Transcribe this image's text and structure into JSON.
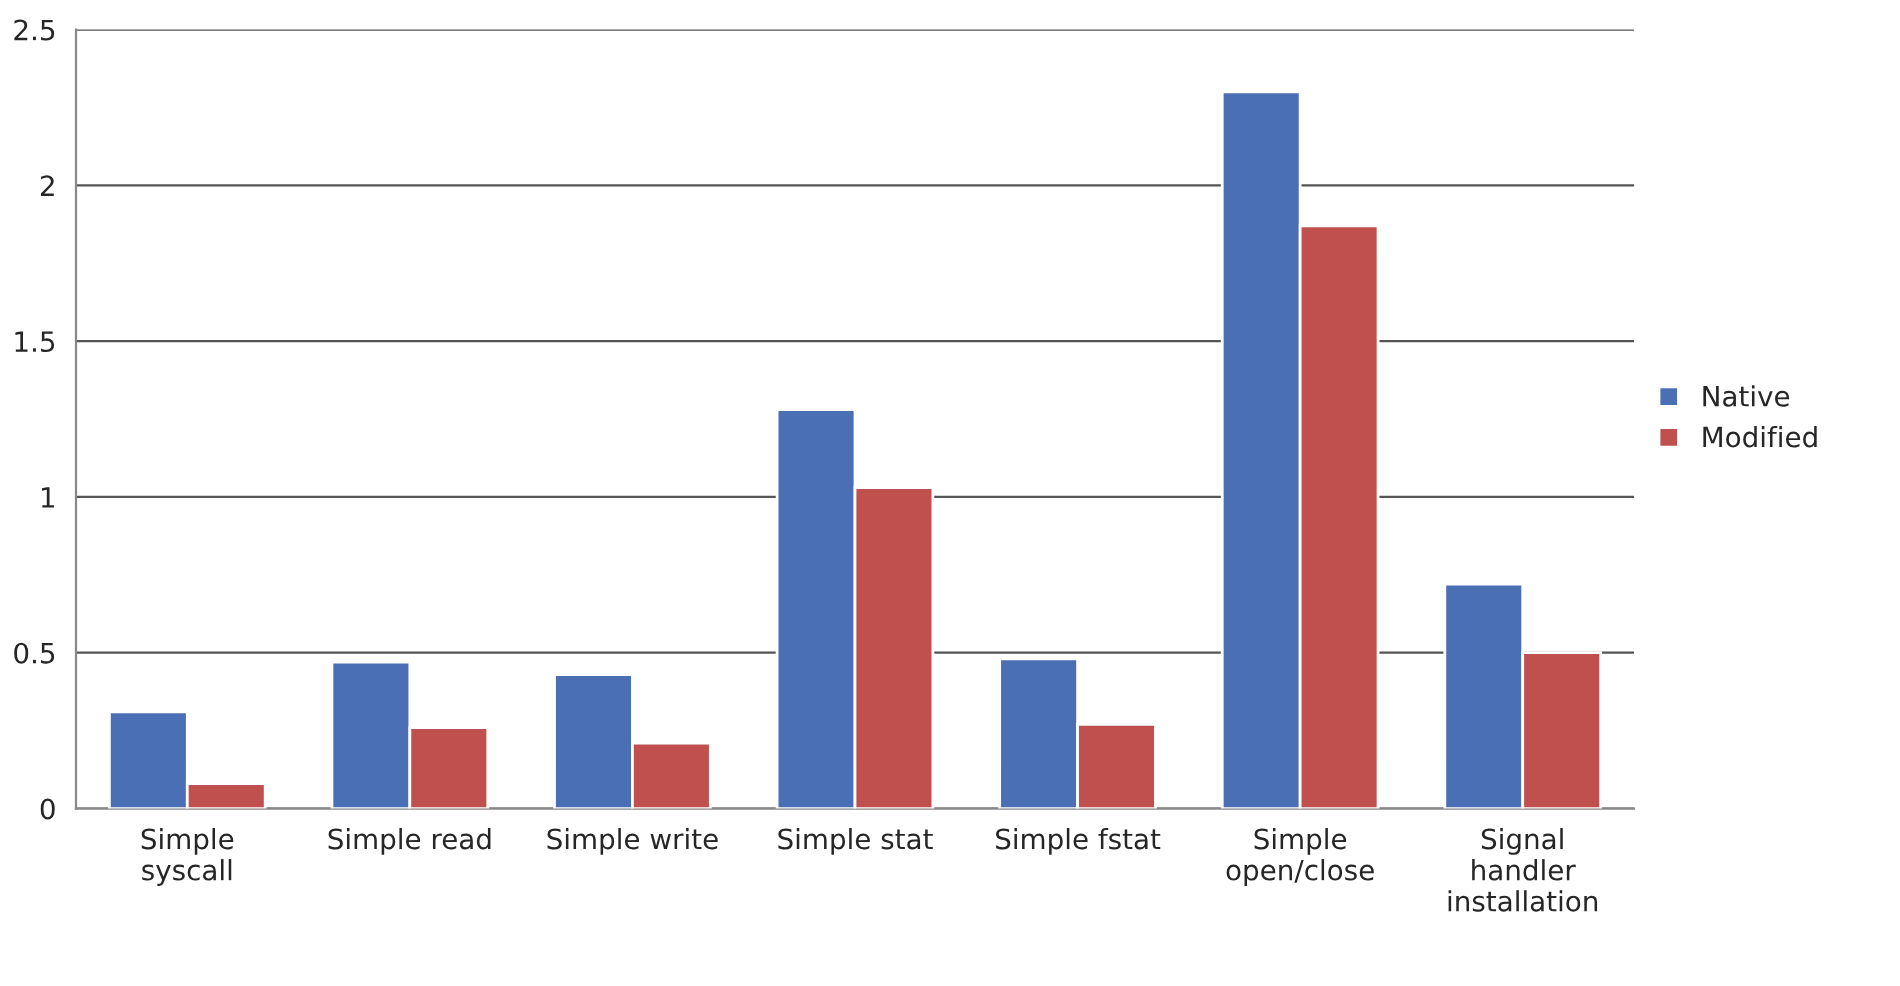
{
  "chart_data": {
    "type": "bar",
    "categories": [
      "Simple\nsyscall",
      "Simple read",
      "Simple write",
      "Simple stat",
      "Simple fstat",
      "Simple\nopen/close",
      "Signal\nhandler\ninstallation"
    ],
    "series": [
      {
        "name": "Native",
        "color": "#4a6fb5",
        "values": [
          0.31,
          0.47,
          0.43,
          1.28,
          0.48,
          2.3,
          0.72
        ]
      },
      {
        "name": "Modified",
        "color": "#c0504d",
        "values": [
          0.08,
          0.26,
          0.21,
          1.03,
          0.27,
          1.87,
          0.5
        ]
      }
    ],
    "ylim": [
      0,
      2.5
    ],
    "yticks": [
      0,
      0.5,
      1,
      1.5,
      2,
      2.5
    ],
    "grid": "y",
    "legend": "right"
  }
}
